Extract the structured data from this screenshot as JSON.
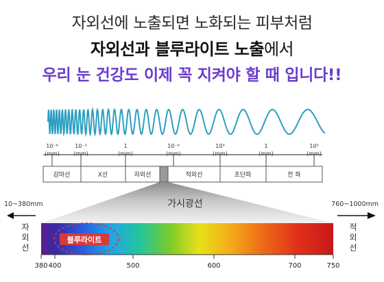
{
  "headline": {
    "line1": "자외선에 노출되면 노화되는 피부처럼",
    "line2_bold1": "자외선과 블루라이트 노출",
    "line2_light": "에서",
    "line3": "우리 눈 건강도 이제 꼭 지켜야 할 때 입니다!!"
  },
  "wavelength_scale": {
    "ticks": [
      {
        "value": "10⁻⁶",
        "unit": "(mm)"
      },
      {
        "value": "10⁻³",
        "unit": "(mm)"
      },
      {
        "value": "1",
        "unit": "(mm)"
      },
      {
        "value": "10⁻⁶",
        "unit": "(mm)"
      },
      {
        "value": "10³",
        "unit": "(mm)"
      },
      {
        "value": "1",
        "unit": "(mm)"
      },
      {
        "value": "10³",
        "unit": "(mm)"
      }
    ]
  },
  "spectrum_bands": [
    "감마선",
    "X선",
    "자외선",
    "",
    "적외선",
    "초단파",
    "전   파"
  ],
  "visible_light_label": "가시광선",
  "left_range": "10~380mm",
  "right_range": "760~1000mm",
  "left_side_label": [
    "자",
    "외",
    "선"
  ],
  "right_side_label": [
    "적",
    "외",
    "선"
  ],
  "bluelight_label": "블루라이트",
  "spectrum_axis_ticks": [
    "380",
    "400",
    "500",
    "600",
    "700",
    "750"
  ],
  "colors": {
    "wave": "#2a9fc0",
    "purple_text": "#6a3bd0",
    "bluelight_badge": "#d83a3a",
    "dash_ellipse": "#d23a3a"
  }
}
